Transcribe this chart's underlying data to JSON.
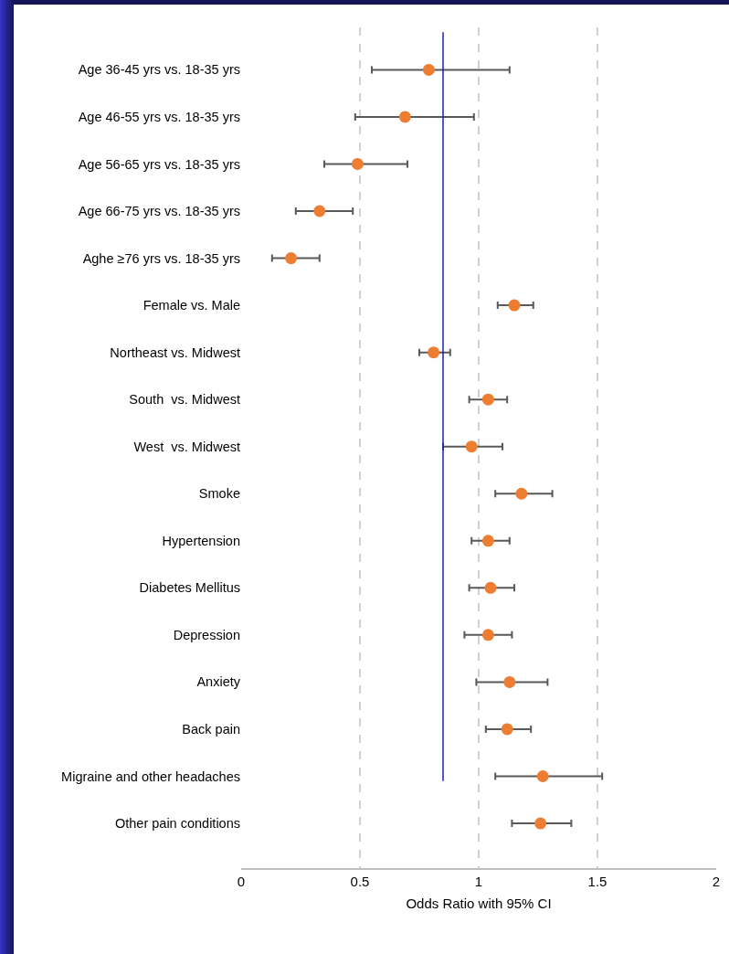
{
  "chart_data": {
    "type": "scatter",
    "xlabel": "Odds Ratio with 95% CI",
    "categories": [
      "Age 36-45 yrs vs. 18-35 yrs",
      "Age 46-55 yrs vs. 18-35 yrs",
      "Age 56-65 yrs vs. 18-35 yrs",
      "Age 66-75 yrs vs. 18-35 yrs",
      "Aghe ≥76 yrs vs. 18-35 yrs",
      "Female vs. Male",
      "Northeast vs. Midwest",
      "South  vs. Midwest",
      "West  vs. Midwest",
      "Smoke",
      "Hypertension",
      "Diabetes Mellitus",
      "Depression",
      "Anxiety",
      "Back pain",
      "Migraine and other headaches",
      "Other pain conditions"
    ],
    "orientation": "horizontal",
    "values": [
      0.79,
      0.69,
      0.49,
      0.33,
      0.21,
      1.15,
      0.81,
      1.04,
      0.97,
      1.18,
      1.04,
      1.05,
      1.04,
      1.13,
      1.12,
      1.27,
      1.26
    ],
    "errors": [
      [
        0.55,
        1.13
      ],
      [
        0.48,
        0.98
      ],
      [
        0.35,
        0.7
      ],
      [
        0.23,
        0.47
      ],
      [
        0.13,
        0.33
      ],
      [
        1.08,
        1.23
      ],
      [
        0.75,
        0.88
      ],
      [
        0.96,
        1.12
      ],
      [
        0.85,
        1.1
      ],
      [
        1.07,
        1.31
      ],
      [
        0.97,
        1.13
      ],
      [
        0.96,
        1.15
      ],
      [
        0.94,
        1.14
      ],
      [
        0.99,
        1.29
      ],
      [
        1.03,
        1.22
      ],
      [
        1.07,
        1.52
      ],
      [
        1.14,
        1.39
      ]
    ],
    "color": "#ed7d31",
    "xlim": [
      0,
      2
    ],
    "xticks": [
      0,
      0.5,
      1,
      1.5,
      2
    ],
    "ref_lines": [
      {
        "axis": "x",
        "value": 0.85,
        "color": "#1f1fb0"
      }
    ],
    "grid": "x",
    "marker": "circle"
  }
}
